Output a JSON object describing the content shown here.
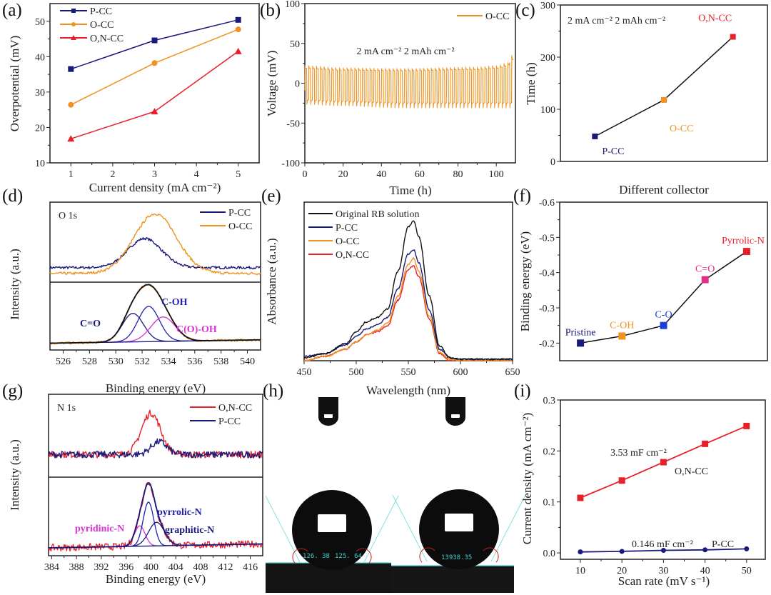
{
  "chart_data": [
    {
      "id": "a",
      "panel_label": "(a)",
      "type": "line",
      "xlabel": "Current density (mA cm⁻²)",
      "ylabel": "Overpotential (mV)",
      "xlim": [
        0.5,
        5.5
      ],
      "ylim": [
        10,
        55
      ],
      "xticks": [
        1,
        2,
        3,
        4,
        5
      ],
      "yticks": [
        10,
        20,
        30,
        40,
        50
      ],
      "legend": "top-left",
      "series": [
        {
          "name": "P-CC",
          "color": "#1a1a7a",
          "marker": "square",
          "x": [
            1,
            3,
            5
          ],
          "y": [
            36.5,
            44.6,
            50.4
          ]
        },
        {
          "name": "O-CC",
          "color": "#f0921e",
          "marker": "circle",
          "x": [
            1,
            3,
            5
          ],
          "y": [
            26.4,
            38.2,
            47.7
          ]
        },
        {
          "name": "O,N-CC",
          "color": "#e8202a",
          "marker": "triangle",
          "x": [
            1,
            3,
            5
          ],
          "y": [
            16.8,
            24.5,
            41.5
          ]
        }
      ]
    },
    {
      "id": "b",
      "panel_label": "(b)",
      "type": "line",
      "xlabel": "Time (h)",
      "ylabel": "Voltage (mV)",
      "xlim": [
        0,
        110
      ],
      "ylim": [
        -100,
        100
      ],
      "xticks": [
        0,
        20,
        40,
        60,
        80,
        100
      ],
      "yticks": [
        -100,
        -50,
        0,
        50,
        100
      ],
      "legend": "top-right",
      "annotation": "2 mA cm⁻² 2 mAh cm⁻²",
      "series": [
        {
          "name": "O-CC",
          "color": "#f0921e",
          "cycle_period_h": 2,
          "upper_envelope": {
            "x": [
              0,
              20,
              50,
              90,
              100,
              106,
              108
            ],
            "y": [
              24,
              21,
              20,
              22,
              24,
              28,
              38
            ]
          },
          "lower_envelope": {
            "x": [
              0,
              20,
              50,
              90,
              108
            ],
            "y": [
              -30,
              -32,
              -35,
              -35,
              -35
            ]
          }
        }
      ]
    },
    {
      "id": "c",
      "panel_label": "(c)",
      "type": "line",
      "xlabel": "Different collector",
      "ylabel": "Time (h)",
      "ylim": [
        0,
        300
      ],
      "yticks": [
        0,
        100,
        200,
        300
      ],
      "annotation": "2 mA cm⁻² 2 mAh cm⁻²",
      "categories": [
        "P-CC",
        "O-CC",
        "O,N-CC"
      ],
      "values": [
        48,
        118,
        239
      ],
      "colors": [
        "#1a1a7a",
        "#f0921e",
        "#e8202a"
      ]
    },
    {
      "id": "d",
      "panel_label": "(d)",
      "type": "line",
      "xlabel": "Binding energy (eV)",
      "ylabel": "Intensity (a.u.)",
      "xlim": [
        525,
        541
      ],
      "xticks": [
        526,
        528,
        530,
        532,
        534,
        536,
        538,
        540
      ],
      "region": "O 1s",
      "legend": "top-right",
      "top": [
        {
          "name": "P-CC",
          "color": "#1a1a7a",
          "baseline": 0.2,
          "peaks": [
            {
              "center": 532.2,
              "height": 0.4,
              "fwhm": 3.0
            }
          ]
        },
        {
          "name": "O-CC",
          "color": "#f0921e",
          "baseline": 0.12,
          "peaks": [
            {
              "center": 533.0,
              "height": 0.82,
              "fwhm": 3.8
            }
          ]
        }
      ],
      "bottom": {
        "raw_color": "#f0921e",
        "envelope_color": "#111111",
        "baseline": [
          0.1,
          0.15
        ],
        "components": [
          {
            "label": "C=O",
            "center": 531.3,
            "height": 0.42,
            "fwhm": 1.9,
            "color": "#1a1a7a"
          },
          {
            "label": "C-OH",
            "center": 532.5,
            "height": 0.52,
            "fwhm": 1.9,
            "color": "#2020b0"
          },
          {
            "label": "C(O)-OH",
            "center": 533.6,
            "height": 0.36,
            "fwhm": 2.2,
            "color": "#d633d6"
          }
        ]
      }
    },
    {
      "id": "e",
      "panel_label": "(e)",
      "type": "line",
      "xlabel": "Wavelength (nm)",
      "ylabel": "Absorbance (a.u.)",
      "xlim": [
        450,
        650
      ],
      "ylim": [
        0,
        1.1
      ],
      "xticks": [
        450,
        500,
        550,
        600,
        650
      ],
      "legend": "top-left",
      "x": [
        450,
        470,
        490,
        500,
        510,
        520,
        530,
        540,
        550,
        555,
        560,
        570,
        580,
        590,
        600,
        650
      ],
      "series": [
        {
          "name": "Original RB solution",
          "color": "#111111",
          "y": [
            0.02,
            0.05,
            0.12,
            0.2,
            0.27,
            0.3,
            0.36,
            0.62,
            0.93,
            0.97,
            0.86,
            0.45,
            0.1,
            0.02,
            0.01,
            0.01
          ]
        },
        {
          "name": "P-CC",
          "color": "#1a1a7a",
          "y": [
            0.03,
            0.05,
            0.11,
            0.17,
            0.22,
            0.25,
            0.3,
            0.5,
            0.74,
            0.77,
            0.68,
            0.35,
            0.08,
            0.02,
            0.01,
            0.01
          ]
        },
        {
          "name": "O-CC",
          "color": "#f0921e",
          "y": [
            0.0,
            0.03,
            0.08,
            0.13,
            0.18,
            0.21,
            0.26,
            0.45,
            0.67,
            0.71,
            0.62,
            0.31,
            0.06,
            0.01,
            0.0,
            0.0
          ]
        },
        {
          "name": "O,N-CC",
          "color": "#e8202a",
          "y": [
            0.0,
            0.03,
            0.08,
            0.13,
            0.18,
            0.2,
            0.24,
            0.42,
            0.63,
            0.66,
            0.58,
            0.29,
            0.05,
            0.0,
            0.0,
            0.0
          ]
        }
      ]
    },
    {
      "id": "f",
      "panel_label": "(f)",
      "type": "line",
      "ylabel": "Binding energy (eV)",
      "ylim": [
        -0.15,
        -0.6
      ],
      "yticks": [
        -0.2,
        -0.3,
        -0.4,
        -0.5,
        -0.6
      ],
      "categories": [
        "Pristine",
        "C-OH",
        "C-O",
        "C=O",
        "Pyrrolic-N"
      ],
      "values": [
        -0.2,
        -0.22,
        -0.25,
        -0.38,
        -0.46
      ],
      "colors": [
        "#1a1a7a",
        "#f0921e",
        "#1a3fdc",
        "#e0308a",
        "#e8202a"
      ]
    },
    {
      "id": "g",
      "panel_label": "(g)",
      "type": "line",
      "xlabel": "Binding energy (eV)",
      "ylabel": "Intensity (a.u.)",
      "xlim": [
        383.5,
        418
      ],
      "xticks": [
        384,
        388,
        392,
        396,
        400,
        404,
        408,
        412,
        416
      ],
      "region": "N 1s",
      "legend": "top-right",
      "top": [
        {
          "name": "O,N-CC",
          "color": "#e8202a",
          "baseline": 0.3,
          "peaks": [
            {
              "center": 400.0,
              "height": 0.55,
              "fwhm": 3.6
            }
          ]
        },
        {
          "name": "P-CC",
          "color": "#1a1a7a",
          "baseline": 0.3,
          "peaks": [
            {
              "center": 401.3,
              "height": 0.17,
              "fwhm": 3.0
            }
          ]
        }
      ],
      "bottom": {
        "raw_color": "#e8202a",
        "envelope_color": "#1a1a7a",
        "baseline": [
          0.1,
          0.15
        ],
        "components": [
          {
            "label": "pyridinic-N",
            "center": 398.2,
            "height": 0.26,
            "fwhm": 2.0,
            "color": "#d633d6"
          },
          {
            "label": "pyrrolic-N",
            "center": 399.6,
            "height": 0.56,
            "fwhm": 2.0,
            "color": "#2020b0"
          },
          {
            "label": "graphitic-N",
            "center": 400.9,
            "height": 0.3,
            "fwhm": 3.0,
            "color": "#1a1a7a"
          }
        ]
      }
    },
    {
      "id": "i",
      "panel_label": "(i)",
      "type": "line",
      "xlabel": "Scan rate (mV s⁻¹)",
      "ylabel": "Current density (mA cm⁻²)",
      "xlim": [
        5.2,
        54.5
      ],
      "ylim": [
        -0.0125,
        0.3
      ],
      "xticks": [
        10,
        20,
        30,
        40,
        50
      ],
      "yticks": [
        0.0,
        0.1,
        0.2,
        0.3
      ],
      "series": [
        {
          "name": "O,N-CC",
          "color": "#e8202a",
          "marker": "square",
          "x": [
            10,
            20,
            30,
            40,
            50
          ],
          "y": [
            0.108,
            0.142,
            0.178,
            0.214,
            0.249
          ],
          "capacitance": "3.53 mF cm⁻²"
        },
        {
          "name": "P-CC",
          "color": "#1a1a7a",
          "marker": "circle",
          "x": [
            10,
            20,
            30,
            40,
            50
          ],
          "y": [
            0.002,
            0.003,
            0.005,
            0.006,
            0.008
          ],
          "capacitance": "0.146 mF cm⁻²"
        }
      ]
    }
  ],
  "image_h": {
    "panel_label": "(h)",
    "contact_angle_left": [
      "126. 38",
      "125. 64"
    ],
    "contact_angle_right": "13938.35",
    "overlay_color": "#3fd0d0"
  }
}
